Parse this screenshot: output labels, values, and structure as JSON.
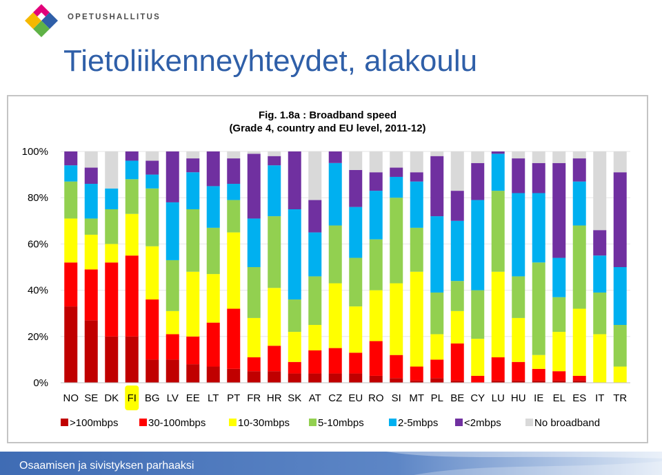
{
  "header": {
    "org_name": "OPETUSHALLITUS",
    "title": "Tietoliikenneyhteydet, alakoulu"
  },
  "footer": {
    "text": "Osaamisen ja sivistyksen parhaaksi"
  },
  "chart_data": {
    "type": "bar",
    "stacked": true,
    "title": "Fig. 1.8a : Broadband speed",
    "subtitle": "(Grade 4, country and EU level, 2011-12)",
    "ylim": [
      0,
      100
    ],
    "yticks": [
      "0%",
      "20%",
      "40%",
      "60%",
      "80%",
      "100%"
    ],
    "legend_position": "bottom",
    "highlighted_category": "FI",
    "categories": [
      "NO",
      "SE",
      "DK",
      "FI",
      "BG",
      "LV",
      "EE",
      "LT",
      "PT",
      "FR",
      "HR",
      "SK",
      "AT",
      "CZ",
      "EU",
      "RO",
      "SI",
      "MT",
      "PL",
      "BE",
      "CY",
      "LU",
      "HU",
      "IE",
      "EL",
      "ES",
      "IT",
      "TR"
    ],
    "series": [
      {
        "name": ">100mbps",
        "color": "#c00000",
        "values": [
          33,
          27,
          20,
          20,
          10,
          10,
          8,
          7,
          6,
          5,
          5,
          4,
          4,
          4,
          4,
          3,
          2,
          1,
          2,
          1,
          0,
          1,
          1,
          1,
          1,
          1,
          0,
          0
        ]
      },
      {
        "name": "30-100mbps",
        "color": "#ff0000",
        "values": [
          19,
          22,
          32,
          35,
          26,
          11,
          12,
          19,
          26,
          6,
          11,
          5,
          10,
          11,
          9,
          15,
          10,
          6,
          8,
          16,
          3,
          10,
          8,
          5,
          4,
          2,
          0,
          0
        ]
      },
      {
        "name": "10-30mbps",
        "color": "#ffff00",
        "values": [
          19,
          15,
          8,
          18,
          23,
          10,
          28,
          21,
          33,
          17,
          25,
          13,
          11,
          28,
          20,
          22,
          31,
          41,
          11,
          14,
          16,
          37,
          19,
          6,
          17,
          29,
          21,
          7
        ]
      },
      {
        "name": "5-10mbps",
        "color": "#92d050",
        "values": [
          16,
          7,
          15,
          15,
          25,
          22,
          27,
          20,
          14,
          22,
          31,
          14,
          21,
          25,
          21,
          22,
          37,
          19,
          18,
          13,
          21,
          35,
          18,
          40,
          15,
          36,
          18,
          18
        ]
      },
      {
        "name": "2-5mbps",
        "color": "#00b0f0",
        "values": [
          7,
          15,
          9,
          8,
          6,
          25,
          16,
          18,
          7,
          21,
          22,
          39,
          19,
          27,
          22,
          21,
          9,
          20,
          33,
          26,
          39,
          16,
          36,
          30,
          17,
          19,
          16,
          25
        ]
      },
      {
        "name": "<2mbps",
        "color": "#7030a0",
        "values": [
          6,
          7,
          0,
          4,
          6,
          22,
          6,
          15,
          11,
          28,
          4,
          25,
          14,
          5,
          16,
          8,
          4,
          4,
          26,
          13,
          16,
          1,
          15,
          13,
          41,
          10,
          11,
          41
        ]
      },
      {
        "name": "No broadband",
        "color": "#d9d9d9",
        "values": [
          0,
          7,
          16,
          0,
          4,
          0,
          3,
          0,
          3,
          1,
          2,
          0,
          21,
          0,
          8,
          9,
          7,
          9,
          2,
          17,
          5,
          0,
          3,
          5,
          5,
          3,
          34,
          9
        ]
      }
    ]
  }
}
